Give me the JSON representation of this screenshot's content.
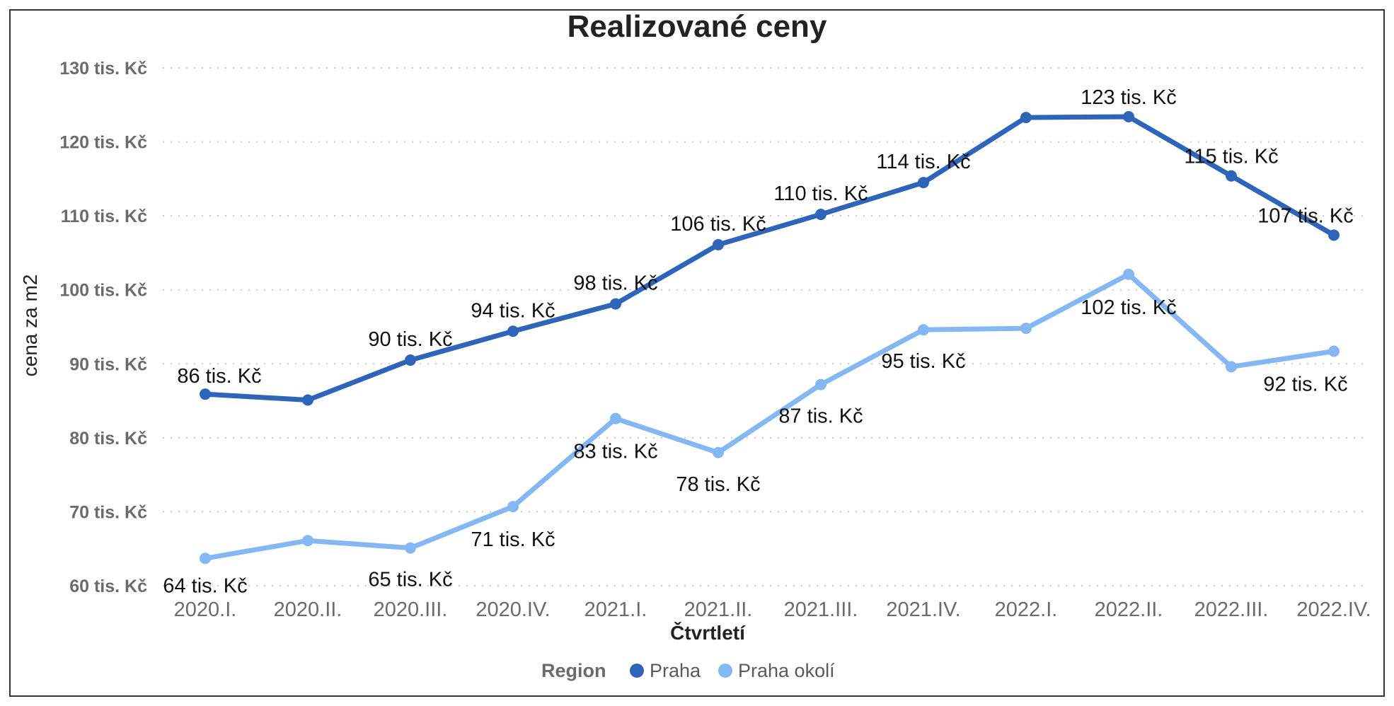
{
  "chart_data": {
    "type": "line",
    "title": "Realizované ceny",
    "xlabel": "Čtvrtletí",
    "ylabel": "cena za m2",
    "ylim": [
      60,
      130
    ],
    "ytick_values": [
      60,
      70,
      80,
      90,
      100,
      110,
      120,
      130
    ],
    "ytick_labels": [
      "60 tis. Kč",
      "70 tis. Kč",
      "80 tis. Kč",
      "90 tis. Kč",
      "100 tis. Kč",
      "110 tis. Kč",
      "120 tis. Kč",
      "130 tis. Kč"
    ],
    "grid": true,
    "categories": [
      "2020.I.",
      "2020.II.",
      "2020.III.",
      "2020.IV.",
      "2021.I.",
      "2021.II.",
      "2021.III.",
      "2021.IV.",
      "2022.I.",
      "2022.II.",
      "2022.III.",
      "2022.IV."
    ],
    "legend": {
      "title": "Region",
      "placement": "bottom"
    },
    "series": [
      {
        "name": "Praha",
        "color": "#2e65b8",
        "values": [
          85.9,
          85.1,
          90.5,
          94.4,
          98.1,
          106.1,
          110.2,
          114.5,
          123.3,
          123.4,
          115.4,
          107.4
        ],
        "labels": [
          "86 tis. Kč",
          "",
          "90 tis. Kč",
          "94 tis. Kč",
          "98 tis. Kč",
          "106 tis. Kč",
          "110 tis. Kč",
          "114 tis. Kč",
          "",
          "123 tis. Kč",
          "115 tis. Kč",
          "107 tis. Kč"
        ]
      },
      {
        "name": "Praha okolí",
        "color": "#85b8f2",
        "values": [
          63.7,
          66.1,
          65.1,
          70.7,
          82.6,
          78.0,
          87.2,
          94.6,
          94.8,
          102.1,
          89.6,
          91.7
        ],
        "labels": [
          "64 tis. Kč",
          "",
          "65 tis. Kč",
          "71 tis. Kč",
          "83 tis. Kč",
          "78 tis. Kč",
          "87 tis. Kč",
          "95 tis. Kč",
          "",
          "102 tis. Kč",
          "",
          "92 tis. Kč"
        ]
      }
    ]
  }
}
